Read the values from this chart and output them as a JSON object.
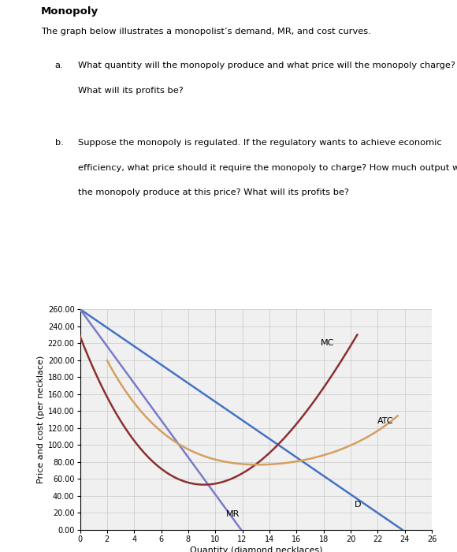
{
  "title": "Monopoly",
  "subtitle": "The graph below illustrates a monopolist’s demand, MR, and cost curves.",
  "xlabel": "Quantity (diamond necklaces)",
  "ylabel": "Price and cost (per necklace)",
  "xlim": [
    0,
    26
  ],
  "ylim": [
    0,
    260
  ],
  "xticks": [
    0,
    2,
    4,
    6,
    8,
    10,
    12,
    14,
    16,
    18,
    20,
    22,
    24,
    26
  ],
  "yticks": [
    0,
    20,
    40,
    60,
    80,
    100,
    120,
    140,
    160,
    180,
    200,
    220,
    240,
    260
  ],
  "D_color": "#4472c4",
  "MR_color": "#7b7bc8",
  "MC_color": "#8b3030",
  "ATC_color": "#d4a060",
  "grid_color": "#c8c8c8",
  "background_color": "#f0f0f0"
}
